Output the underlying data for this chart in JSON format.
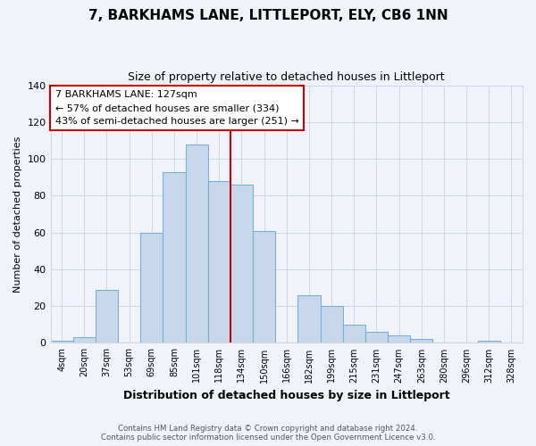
{
  "title": "7, BARKHAMS LANE, LITTLEPORT, ELY, CB6 1NN",
  "subtitle": "Size of property relative to detached houses in Littleport",
  "xlabel": "Distribution of detached houses by size in Littleport",
  "ylabel": "Number of detached properties",
  "bar_labels": [
    "4sqm",
    "20sqm",
    "37sqm",
    "53sqm",
    "69sqm",
    "85sqm",
    "101sqm",
    "118sqm",
    "134sqm",
    "150sqm",
    "166sqm",
    "182sqm",
    "199sqm",
    "215sqm",
    "231sqm",
    "247sqm",
    "263sqm",
    "280sqm",
    "296sqm",
    "312sqm",
    "328sqm"
  ],
  "bar_values": [
    1,
    3,
    29,
    0,
    60,
    93,
    108,
    88,
    86,
    61,
    0,
    26,
    20,
    10,
    6,
    4,
    2,
    0,
    0,
    1,
    0
  ],
  "bar_color": "#c8d8ec",
  "bar_edge_color": "#7bafd4",
  "vline_x_idx": 7,
  "vline_color": "#cc0000",
  "annotation_title": "7 BARKHAMS LANE: 127sqm",
  "annotation_line1": "← 57% of detached houses are smaller (334)",
  "annotation_line2": "43% of semi-detached houses are larger (251) →",
  "annotation_box_color": "#ffffff",
  "annotation_box_edge": "#cc0000",
  "ylim": [
    0,
    140
  ],
  "footer1": "Contains HM Land Registry data © Crown copyright and database right 2024.",
  "footer2": "Contains public sector information licensed under the Open Government Licence v3.0.",
  "bg_color": "#f0f4fa",
  "grid_color": "#d0d8e8"
}
